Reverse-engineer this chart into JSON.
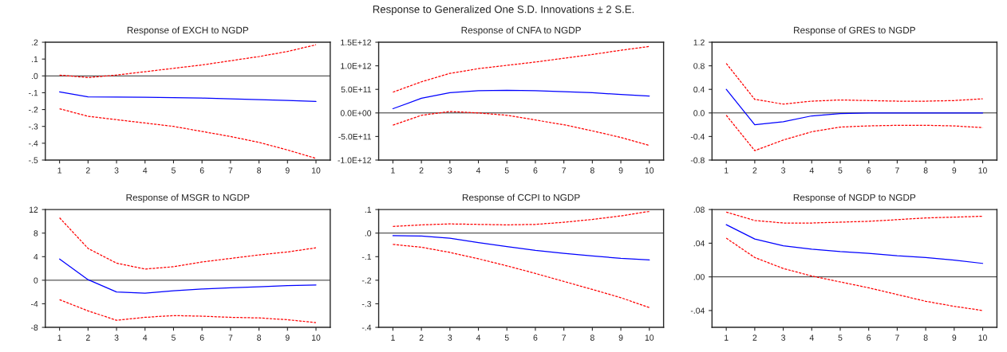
{
  "chart_data": [
    {
      "type": "line",
      "title": "Response of EXCH to NGDP",
      "annotations": [
        "Response to Generalized One S.D. Innovations ± 2 S.E."
      ],
      "categories": [
        "1",
        "2",
        "3",
        "4",
        "5",
        "6",
        "7",
        "8",
        "9",
        "10"
      ],
      "ylim": [
        -0.5,
        0.2
      ],
      "yticks": [
        {
          "value": -0.5,
          "label": "-.5"
        },
        {
          "value": -0.4,
          "label": "-.4"
        },
        {
          "value": -0.3,
          "label": "-.3"
        },
        {
          "value": -0.2,
          "label": "-.2"
        },
        {
          "value": -0.1,
          "label": "-.1"
        },
        {
          "value": 0,
          "label": ".0"
        },
        {
          "value": 0.1,
          "label": ".1"
        },
        {
          "value": 0.2,
          "label": ".2"
        }
      ],
      "ref_lines": [
        {
          "axis": "y",
          "value": 0,
          "color": "#000000"
        }
      ],
      "grid": false,
      "legend": false,
      "series": [
        {
          "color": "#ff0000",
          "line_style": "dashed",
          "values": [
            0.005,
            -0.01,
            0.005,
            0.025,
            0.045,
            0.065,
            0.09,
            0.115,
            0.145,
            0.185
          ]
        },
        {
          "color": "#0000ff",
          "line_style": "solid",
          "values": [
            -0.095,
            -0.125,
            -0.126,
            -0.127,
            -0.129,
            -0.132,
            -0.136,
            -0.141,
            -0.146,
            -0.152
          ]
        },
        {
          "color": "#ff0000",
          "line_style": "dashed",
          "values": [
            -0.195,
            -0.24,
            -0.26,
            -0.28,
            -0.3,
            -0.33,
            -0.36,
            -0.395,
            -0.44,
            -0.49
          ]
        }
      ]
    },
    {
      "type": "line",
      "title": "Response of CNFA to NGDP",
      "categories": [
        "1",
        "2",
        "3",
        "4",
        "5",
        "6",
        "7",
        "8",
        "9",
        "10"
      ],
      "ylim": [
        -1000000000000.0,
        1500000000000.0
      ],
      "yticks": [
        {
          "value": -1000000000000.0,
          "label": "-1.0E+12"
        },
        {
          "value": -500000000000.0,
          "label": "-5.0E+11"
        },
        {
          "value": 0,
          "label": "0.0E+00"
        },
        {
          "value": 500000000000.0,
          "label": "5.0E+11"
        },
        {
          "value": 1000000000000.0,
          "label": "1.0E+12"
        },
        {
          "value": 1500000000000.0,
          "label": "1.5E+12"
        }
      ],
      "ref_lines": [
        {
          "axis": "y",
          "value": 0,
          "color": "#000000"
        }
      ],
      "grid": false,
      "legend": false,
      "series": [
        {
          "color": "#ff0000",
          "line_style": "dashed",
          "values": [
            440000000000.0,
            660000000000.0,
            840000000000.0,
            940000000000.0,
            1010000000000.0,
            1080000000000.0,
            1160000000000.0,
            1240000000000.0,
            1330000000000.0,
            1410000000000.0
          ]
        },
        {
          "color": "#0000ff",
          "line_style": "solid",
          "values": [
            90000000000.0,
            310000000000.0,
            430000000000.0,
            470000000000.0,
            480000000000.0,
            470000000000.0,
            450000000000.0,
            430000000000.0,
            390000000000.0,
            360000000000.0
          ]
        },
        {
          "color": "#ff0000",
          "line_style": "dashed",
          "values": [
            -260000000000.0,
            -50000000000.0,
            30000000000.0,
            0,
            -50000000000.0,
            -150000000000.0,
            -250000000000.0,
            -380000000000.0,
            -520000000000.0,
            -690000000000.0
          ]
        }
      ]
    },
    {
      "type": "line",
      "title": "Response of GRES to NGDP",
      "categories": [
        "1",
        "2",
        "3",
        "4",
        "5",
        "6",
        "7",
        "8",
        "9",
        "10"
      ],
      "ylim": [
        -0.8,
        1.2
      ],
      "yticks": [
        {
          "value": -0.8,
          "label": "-0.8"
        },
        {
          "value": -0.4,
          "label": "-0.4"
        },
        {
          "value": 0,
          "label": "0.0"
        },
        {
          "value": 0.4,
          "label": "0.4"
        },
        {
          "value": 0.8,
          "label": "0.8"
        },
        {
          "value": 1.2,
          "label": "1.2"
        }
      ],
      "ref_lines": [
        {
          "axis": "y",
          "value": 0,
          "color": "#000000"
        }
      ],
      "grid": false,
      "legend": false,
      "series": [
        {
          "color": "#ff0000",
          "line_style": "dashed",
          "values": [
            0.84,
            0.23,
            0.15,
            0.2,
            0.22,
            0.21,
            0.2,
            0.2,
            0.21,
            0.24
          ]
        },
        {
          "color": "#0000ff",
          "line_style": "solid",
          "values": [
            0.4,
            -0.2,
            -0.15,
            -0.05,
            -0.01,
            0,
            0,
            0,
            0,
            0
          ]
        },
        {
          "color": "#ff0000",
          "line_style": "dashed",
          "values": [
            -0.04,
            -0.64,
            -0.46,
            -0.32,
            -0.24,
            -0.22,
            -0.21,
            -0.21,
            -0.22,
            -0.25
          ]
        }
      ]
    },
    {
      "type": "line",
      "title": "Response of MSGR to NGDP",
      "categories": [
        "1",
        "2",
        "3",
        "4",
        "5",
        "6",
        "7",
        "8",
        "9",
        "10"
      ],
      "ylim": [
        -8,
        12
      ],
      "yticks": [
        -8,
        -4,
        0,
        4,
        8,
        12
      ],
      "ref_lines": [
        {
          "axis": "y",
          "value": 0,
          "color": "#000000"
        }
      ],
      "grid": false,
      "legend": false,
      "series": [
        {
          "color": "#ff0000",
          "line_style": "dashed",
          "values": [
            10.6,
            5.4,
            2.9,
            1.9,
            2.3,
            3.1,
            3.7,
            4.3,
            4.8,
            5.5
          ]
        },
        {
          "color": "#0000ff",
          "line_style": "solid",
          "values": [
            3.6,
            0.1,
            -2.0,
            -2.2,
            -1.8,
            -1.5,
            -1.3,
            -1.1,
            -0.9,
            -0.8
          ]
        },
        {
          "color": "#ff0000",
          "line_style": "dashed",
          "values": [
            -3.3,
            -5.2,
            -6.8,
            -6.3,
            -6.0,
            -6.1,
            -6.3,
            -6.4,
            -6.7,
            -7.2
          ]
        }
      ]
    },
    {
      "type": "line",
      "title": "Response of CCPI to NGDP",
      "categories": [
        "1",
        "2",
        "3",
        "4",
        "5",
        "6",
        "7",
        "8",
        "9",
        "10"
      ],
      "ylim": [
        -0.4,
        0.1
      ],
      "yticks": [
        {
          "value": -0.4,
          "label": "-.4"
        },
        {
          "value": -0.3,
          "label": "-.3"
        },
        {
          "value": -0.2,
          "label": "-.2"
        },
        {
          "value": -0.1,
          "label": "-.1"
        },
        {
          "value": 0,
          "label": ".0"
        },
        {
          "value": 0.1,
          "label": ".1"
        }
      ],
      "ref_lines": [
        {
          "axis": "y",
          "value": 0,
          "color": "#000000"
        }
      ],
      "grid": false,
      "legend": false,
      "series": [
        {
          "color": "#ff0000",
          "line_style": "dashed",
          "values": [
            0.028,
            0.035,
            0.039,
            0.037,
            0.035,
            0.037,
            0.046,
            0.058,
            0.073,
            0.092
          ]
        },
        {
          "color": "#0000ff",
          "line_style": "solid",
          "values": [
            -0.011,
            -0.012,
            -0.022,
            -0.04,
            -0.057,
            -0.073,
            -0.086,
            -0.097,
            -0.107,
            -0.114
          ]
        },
        {
          "color": "#ff0000",
          "line_style": "dashed",
          "values": [
            -0.048,
            -0.06,
            -0.082,
            -0.109,
            -0.139,
            -0.171,
            -0.205,
            -0.239,
            -0.274,
            -0.316
          ]
        }
      ]
    },
    {
      "type": "line",
      "title": "Response of NGDP to NGDP",
      "categories": [
        "1",
        "2",
        "3",
        "4",
        "5",
        "6",
        "7",
        "8",
        "9",
        "10"
      ],
      "ylim": [
        -0.06,
        0.08
      ],
      "yticks": [
        {
          "value": -0.04,
          "label": "-.04"
        },
        {
          "value": 0,
          "label": ".00"
        },
        {
          "value": 0.04,
          "label": ".04"
        },
        {
          "value": 0.08,
          "label": ".08"
        }
      ],
      "ref_lines": [
        {
          "axis": "y",
          "value": 0,
          "color": "#000000"
        }
      ],
      "grid": false,
      "legend": false,
      "series": [
        {
          "color": "#ff0000",
          "line_style": "dashed",
          "values": [
            0.077,
            0.067,
            0.064,
            0.064,
            0.065,
            0.066,
            0.068,
            0.07,
            0.071,
            0.072
          ]
        },
        {
          "color": "#0000ff",
          "line_style": "solid",
          "values": [
            0.062,
            0.045,
            0.037,
            0.033,
            0.03,
            0.028,
            0.025,
            0.023,
            0.02,
            0.016
          ]
        },
        {
          "color": "#ff0000",
          "line_style": "dashed",
          "values": [
            0.046,
            0.023,
            0.01,
            0.001,
            -0.006,
            -0.013,
            -0.021,
            -0.029,
            -0.035,
            -0.04
          ]
        }
      ]
    }
  ]
}
